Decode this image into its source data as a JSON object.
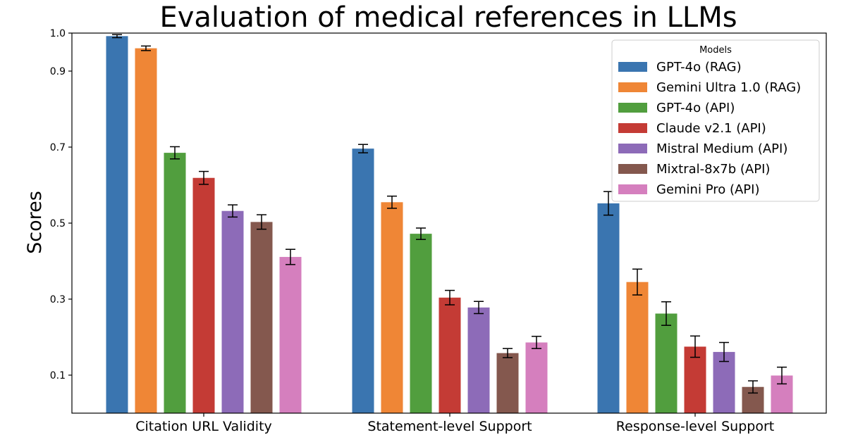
{
  "chart_data": {
    "type": "bar",
    "title": "Evaluation of medical references in LLMs",
    "xlabel": "",
    "ylabel": "Scores",
    "ylim": [
      0,
      1.0
    ],
    "yticks": [
      "0.1",
      "0.3",
      "0.5",
      "0.7",
      "0.9",
      "1.0"
    ],
    "categories": [
      "Citation URL Validity",
      "Statement-level Support",
      "Response-level Support"
    ],
    "legend": {
      "title": "Models",
      "placement": "top-right"
    },
    "grid": false,
    "series": [
      {
        "name": "GPT-4o (RAG)",
        "color": "#3a75b0",
        "values": [
          0.992,
          0.696,
          0.552
        ],
        "errors": [
          0.004,
          0.011,
          0.031
        ]
      },
      {
        "name": "Gemini Ultra 1.0 (RAG)",
        "color": "#ef8636",
        "values": [
          0.96,
          0.555,
          0.345
        ],
        "errors": [
          0.006,
          0.016,
          0.034
        ]
      },
      {
        "name": "GPT-4o (API)",
        "color": "#519e3e",
        "values": [
          0.685,
          0.472,
          0.262
        ],
        "errors": [
          0.016,
          0.015,
          0.031
        ]
      },
      {
        "name": "Claude v2.1 (API)",
        "color": "#c43b35",
        "values": [
          0.619,
          0.304,
          0.175
        ],
        "errors": [
          0.017,
          0.019,
          0.028
        ]
      },
      {
        "name": "Mistral Medium (API)",
        "color": "#8d6bb8",
        "values": [
          0.532,
          0.278,
          0.161
        ],
        "errors": [
          0.016,
          0.016,
          0.025
        ]
      },
      {
        "name": "Mixtral-8x7b (API)",
        "color": "#84584e",
        "values": [
          0.503,
          0.158,
          0.069
        ],
        "errors": [
          0.019,
          0.012,
          0.016
        ]
      },
      {
        "name": "Gemini Pro (API)",
        "color": "#d57fbe",
        "values": [
          0.411,
          0.186,
          0.099
        ],
        "errors": [
          0.02,
          0.016,
          0.022
        ]
      }
    ]
  }
}
